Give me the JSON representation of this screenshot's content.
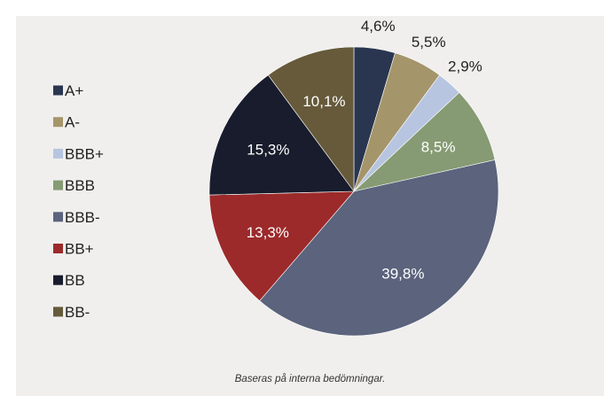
{
  "chart_data": {
    "type": "pie",
    "start_angle_deg": 0,
    "direction": "clockwise",
    "legend_position": "left",
    "slices": [
      {
        "label": "A+",
        "value": 4.6,
        "display": "4,6%",
        "color": "#2a3650",
        "label_color": "#222222",
        "label_outside": true
      },
      {
        "label": "A-",
        "value": 5.5,
        "display": "5,5%",
        "color": "#a5956a",
        "label_color": "#222222",
        "label_outside": true
      },
      {
        "label": "BBB+",
        "value": 2.9,
        "display": "2,9%",
        "color": "#b7c5e0",
        "label_color": "#222222",
        "label_outside": true
      },
      {
        "label": "BBB",
        "value": 8.5,
        "display": "8,5%",
        "color": "#869b73",
        "label_color": "#ffffff",
        "label_outside": false
      },
      {
        "label": "BBB-",
        "value": 39.8,
        "display": "39,8%",
        "color": "#5b637d",
        "label_color": "#ffffff",
        "label_outside": false
      },
      {
        "label": "BB+",
        "value": 13.3,
        "display": "13,3%",
        "color": "#9c2a2b",
        "label_color": "#ffffff",
        "label_outside": false
      },
      {
        "label": "BB",
        "value": 15.3,
        "display": "15,3%",
        "color": "#181c2c",
        "label_color": "#ffffff",
        "label_outside": false
      },
      {
        "label": "BB-",
        "value": 10.1,
        "display": "10,1%",
        "color": "#665a3b",
        "label_color": "#ffffff",
        "label_outside": false
      }
    ],
    "footnote": "Baseras på interna bedömningar."
  }
}
